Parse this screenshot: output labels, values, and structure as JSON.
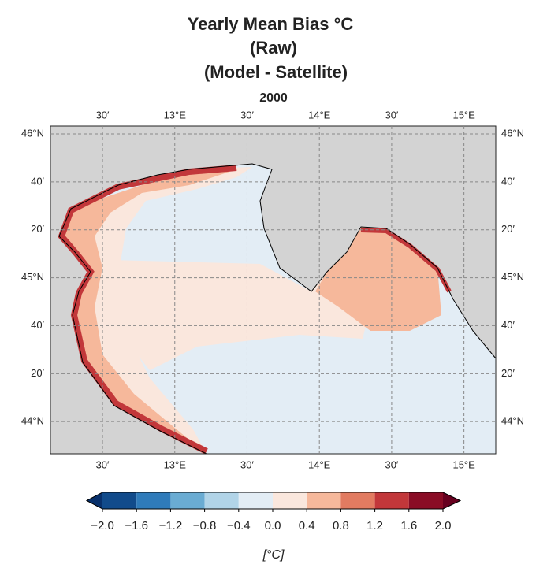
{
  "map": {
    "title_lines": [
      "Yearly Mean Bias °C",
      "(Raw)",
      "(Model - Satellite)"
    ],
    "subtitle": "2000",
    "lonlim": [
      12.14,
      15.22
    ],
    "latlim": [
      43.776,
      46.055
    ],
    "lon_ticks": [
      {
        "value": 12.5,
        "label": "30′"
      },
      {
        "value": 13,
        "label": "13°E"
      },
      {
        "value": 13.5,
        "label": "30′"
      },
      {
        "value": 14,
        "label": "14°E"
      },
      {
        "value": 14.5,
        "label": "30′"
      },
      {
        "value": 15,
        "label": "15°E"
      }
    ],
    "lat_ticks": [
      {
        "value": 46,
        "label": "46°N"
      },
      {
        "value": 45.667,
        "label": "40′"
      },
      {
        "value": 45.333,
        "label": "20′"
      },
      {
        "value": 45,
        "label": "45°N"
      },
      {
        "value": 44.667,
        "label": "40′"
      },
      {
        "value": 44.333,
        "label": "20′"
      },
      {
        "value": 44,
        "label": "44°N"
      }
    ],
    "grid": true,
    "colorbar": {
      "levels": [
        {
          "value": -2,
          "label": "−2.0"
        },
        {
          "value": -1.6,
          "label": "−1.6"
        },
        {
          "value": -1.2,
          "label": "−1.2"
        },
        {
          "value": -0.8,
          "label": "−0.8"
        },
        {
          "value": -0.4,
          "label": "−0.4"
        },
        {
          "value": 0,
          "label": "0.0"
        },
        0.4,
        0.8,
        1.2,
        1.6,
        {
          "value": 2,
          "label": "2.0"
        }
      ],
      "colors": [
        "#114b8b",
        "#2f7bba",
        "#6aacd3",
        "#b1d4e8",
        "#e3edf5",
        "#fae7dd",
        "#f6b89b",
        "#e27b61",
        "#c2373a",
        "#8a0c25"
      ],
      "under_color": "#08306b",
      "over_color": "#67001f",
      "label": "[°C]"
    }
  }
}
